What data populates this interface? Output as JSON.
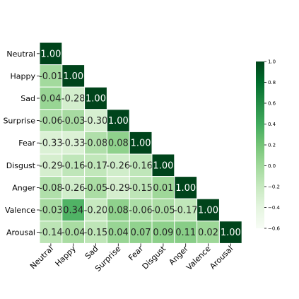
{
  "chart_data": {
    "type": "heatmap",
    "title": "",
    "labels": [
      "Neutral",
      "Happy",
      "Sad",
      "Surprise",
      "Fear",
      "Disgust",
      "Anger",
      "Valence",
      "Arousal"
    ],
    "matrix": [
      [
        "1.00"
      ],
      [
        "-0.01",
        "1.00"
      ],
      [
        "0.04",
        "-0.28",
        "1.00"
      ],
      [
        "-0.06",
        "-0.03",
        "-0.30",
        "1.00"
      ],
      [
        "-0.33",
        "-0.33",
        "-0.08",
        "0.08",
        "1.00"
      ],
      [
        "-0.29",
        "-0.16",
        "-0.17",
        "-0.26",
        "-0.16",
        "1.00"
      ],
      [
        "-0.08",
        "-0.26",
        "-0.05",
        "-0.29",
        "-0.15",
        "0.01",
        "1.00"
      ],
      [
        "-0.03",
        "0.34",
        "-0.20",
        "0.08",
        "-0.06",
        "-0.05",
        "-0.17",
        "1.00"
      ],
      [
        "-0.14",
        "-0.04",
        "-0.15",
        "0.04",
        "0.07",
        "0.09",
        "0.11",
        "0.02",
        "1.00"
      ]
    ],
    "mask": "upper-triangle",
    "colormap": "Greens",
    "vmin": -0.6,
    "vmax": 1.0,
    "colorbar_ticks": [
      "1.0",
      "0.8",
      "0.6",
      "0.4",
      "0.2",
      "0.0",
      "−0.2",
      "−0.4",
      "−0.6"
    ],
    "colorbar_tick_values": [
      1.0,
      0.8,
      0.6,
      0.4,
      0.2,
      0.0,
      -0.2,
      -0.4,
      -0.6
    ]
  }
}
